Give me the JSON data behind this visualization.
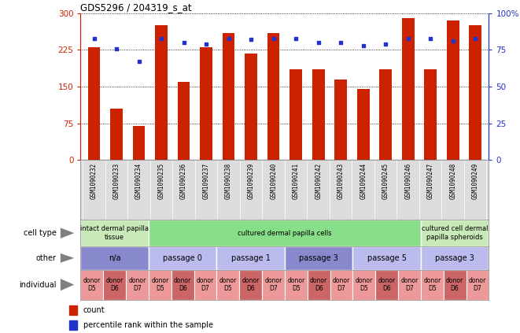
{
  "title": "GDS5296 / 204319_s_at",
  "samples": [
    "GSM1090232",
    "GSM1090233",
    "GSM1090234",
    "GSM1090235",
    "GSM1090236",
    "GSM1090237",
    "GSM1090238",
    "GSM1090239",
    "GSM1090240",
    "GSM1090241",
    "GSM1090242",
    "GSM1090243",
    "GSM1090244",
    "GSM1090245",
    "GSM1090246",
    "GSM1090247",
    "GSM1090248",
    "GSM1090249"
  ],
  "counts": [
    230,
    105,
    70,
    275,
    160,
    230,
    260,
    218,
    260,
    185,
    185,
    165,
    145,
    185,
    290,
    185,
    285,
    275
  ],
  "percentiles": [
    83,
    76,
    67,
    83,
    80,
    79,
    83,
    82,
    83,
    83,
    80,
    80,
    78,
    79,
    83,
    83,
    81,
    83
  ],
  "ylim_left": [
    0,
    300
  ],
  "ylim_right": [
    0,
    100
  ],
  "yticks_left": [
    0,
    75,
    150,
    225,
    300
  ],
  "yticks_right": [
    0,
    25,
    50,
    75,
    100
  ],
  "bar_color": "#cc2200",
  "dot_color": "#2233cc",
  "bg_color": "#ffffff",
  "cell_type_row": {
    "label": "cell type",
    "groups": [
      {
        "text": "intact dermal papilla\ntissue",
        "span": [
          0,
          3
        ],
        "color": "#c8eab8"
      },
      {
        "text": "cultured dermal papilla cells",
        "span": [
          3,
          15
        ],
        "color": "#88dd88"
      },
      {
        "text": "cultured cell dermal\npapilla spheroids",
        "span": [
          15,
          18
        ],
        "color": "#c8eab8"
      }
    ]
  },
  "other_row": {
    "label": "other",
    "groups": [
      {
        "text": "n/a",
        "span": [
          0,
          3
        ],
        "color": "#8888cc"
      },
      {
        "text": "passage 0",
        "span": [
          3,
          6
        ],
        "color": "#bbbbee"
      },
      {
        "text": "passage 1",
        "span": [
          6,
          9
        ],
        "color": "#bbbbee"
      },
      {
        "text": "passage 3",
        "span": [
          9,
          12
        ],
        "color": "#8888cc"
      },
      {
        "text": "passage 5",
        "span": [
          12,
          15
        ],
        "color": "#bbbbee"
      },
      {
        "text": "passage 3",
        "span": [
          15,
          18
        ],
        "color": "#bbbbee"
      }
    ]
  },
  "individual_row": {
    "label": "individual",
    "cells": [
      {
        "text": "donor\nD5",
        "color": "#ee9999"
      },
      {
        "text": "donor\nD6",
        "color": "#cc6666"
      },
      {
        "text": "donor\nD7",
        "color": "#ee9999"
      },
      {
        "text": "donor\nD5",
        "color": "#ee9999"
      },
      {
        "text": "donor\nD6",
        "color": "#cc6666"
      },
      {
        "text": "donor\nD7",
        "color": "#ee9999"
      },
      {
        "text": "donor\nD5",
        "color": "#ee9999"
      },
      {
        "text": "donor\nD6",
        "color": "#cc6666"
      },
      {
        "text": "donor\nD7",
        "color": "#ee9999"
      },
      {
        "text": "donor\nD5",
        "color": "#ee9999"
      },
      {
        "text": "donor\nD6",
        "color": "#cc6666"
      },
      {
        "text": "donor\nD7",
        "color": "#ee9999"
      },
      {
        "text": "donor\nD5",
        "color": "#ee9999"
      },
      {
        "text": "donor\nD6",
        "color": "#cc6666"
      },
      {
        "text": "donor\nD7",
        "color": "#ee9999"
      },
      {
        "text": "donor\nD5",
        "color": "#ee9999"
      },
      {
        "text": "donor\nD6",
        "color": "#cc6666"
      },
      {
        "text": "donor\nD7",
        "color": "#ee9999"
      }
    ]
  }
}
